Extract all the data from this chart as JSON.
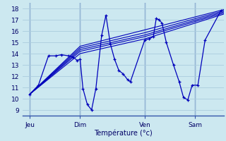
{
  "bg_color": "#cce8f0",
  "grid_color": "#aaccdd",
  "line_color": "#0000bb",
  "xlabel": "Température (°c)",
  "ylim": [
    8.5,
    18.5
  ],
  "yticks": [
    9,
    10,
    11,
    12,
    13,
    14,
    15,
    16,
    17,
    18
  ],
  "xlim": [
    -0.5,
    13.5
  ],
  "day_positions": [
    0.0,
    3.5,
    8.0,
    11.5
  ],
  "day_labels": [
    "Jeu",
    "Dim",
    "Ven",
    "Sam"
  ],
  "vline_positions": [
    0.0,
    3.5,
    8.0,
    11.5
  ],
  "forecast_lines": [
    [
      [
        0.0,
        10.4
      ],
      [
        3.5,
        14.0
      ],
      [
        8.0,
        15.3
      ],
      [
        13.5,
        17.5
      ]
    ],
    [
      [
        0.0,
        10.4
      ],
      [
        3.5,
        14.2
      ],
      [
        8.0,
        15.5
      ],
      [
        13.5,
        17.6
      ]
    ],
    [
      [
        0.0,
        10.4
      ],
      [
        3.5,
        14.35
      ],
      [
        8.0,
        15.65
      ],
      [
        13.5,
        17.7
      ]
    ],
    [
      [
        0.0,
        10.4
      ],
      [
        3.5,
        14.5
      ],
      [
        8.0,
        15.85
      ],
      [
        13.5,
        17.8
      ]
    ],
    [
      [
        0.0,
        10.4
      ],
      [
        3.5,
        14.65
      ],
      [
        8.0,
        16.1
      ],
      [
        13.5,
        17.9
      ]
    ]
  ],
  "detail_line": [
    [
      0.0,
      10.4
    ],
    [
      0.6,
      11.2
    ],
    [
      1.3,
      13.8
    ],
    [
      1.8,
      13.8
    ],
    [
      2.2,
      13.9
    ],
    [
      2.7,
      13.8
    ],
    [
      3.0,
      13.7
    ],
    [
      3.3,
      13.4
    ],
    [
      3.5,
      13.5
    ],
    [
      3.7,
      10.9
    ],
    [
      4.0,
      9.5
    ],
    [
      4.3,
      9.0
    ],
    [
      4.6,
      10.9
    ],
    [
      5.0,
      15.6
    ],
    [
      5.3,
      17.4
    ],
    [
      5.6,
      14.9
    ],
    [
      5.9,
      13.5
    ],
    [
      6.2,
      12.5
    ],
    [
      6.5,
      12.2
    ],
    [
      6.8,
      11.7
    ],
    [
      7.0,
      11.5
    ],
    [
      8.0,
      15.2
    ],
    [
      8.3,
      15.3
    ],
    [
      8.6,
      15.5
    ],
    [
      8.8,
      17.1
    ],
    [
      9.0,
      17.0
    ],
    [
      9.2,
      16.7
    ],
    [
      9.5,
      15.0
    ],
    [
      10.0,
      13.0
    ],
    [
      10.4,
      11.5
    ],
    [
      10.7,
      10.1
    ],
    [
      11.0,
      9.9
    ],
    [
      11.3,
      11.2
    ],
    [
      11.7,
      11.2
    ],
    [
      12.2,
      15.2
    ],
    [
      13.3,
      17.8
    ]
  ]
}
